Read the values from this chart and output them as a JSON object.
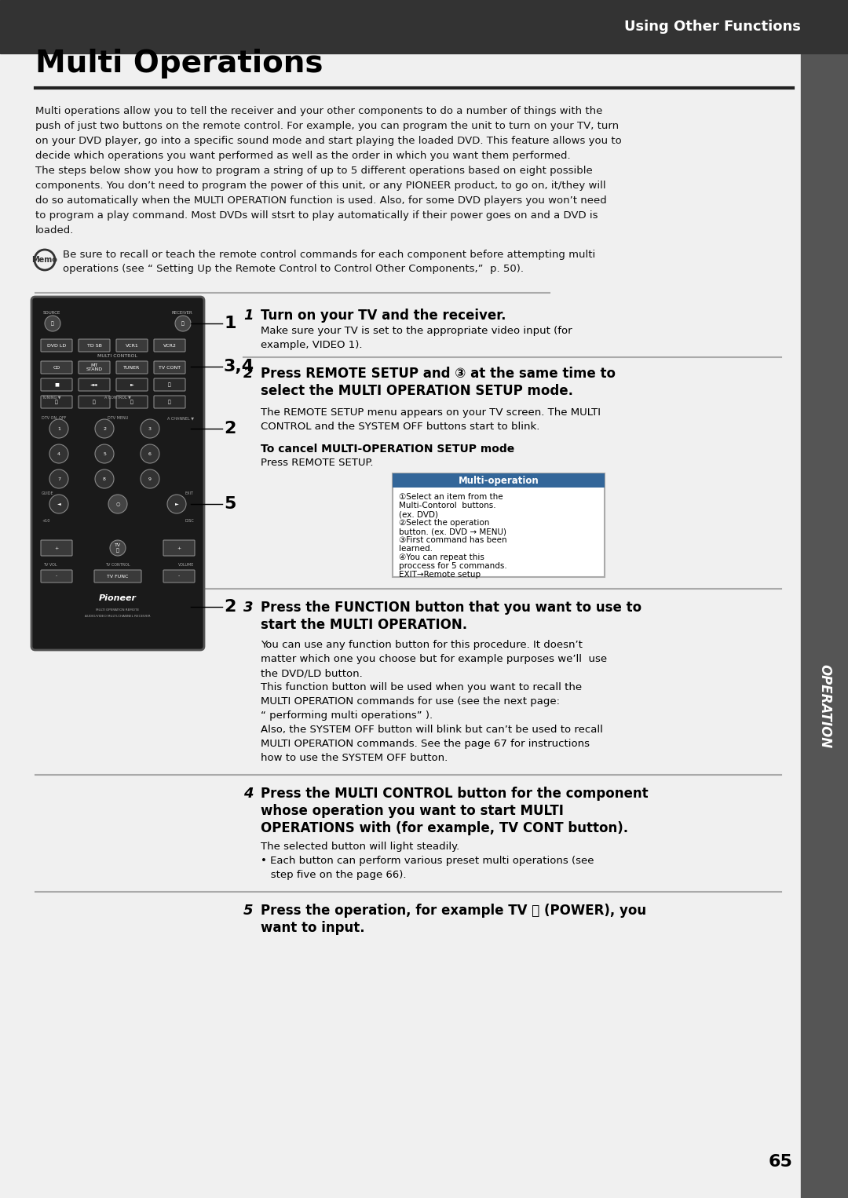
{
  "bg_color": "#e8e8e8",
  "page_bg": "#f0f0f0",
  "header_bg": "#333333",
  "header_text": "Using Other Functions",
  "header_text_color": "#ffffff",
  "title": "Multi Operations",
  "title_color": "#000000",
  "sidebar_bg": "#555555",
  "sidebar_text": "OPERATION",
  "sidebar_text_color": "#ffffff",
  "page_number": "65",
  "body_text_color": "#111111",
  "intro_lines": [
    "Multi operations allow you to tell the receiver and your other components to do a number of things with the",
    "push of just two buttons on the remote control. For example, you can program the unit to turn on your TV, turn",
    "on your DVD player, go into a specific sound mode and start playing the loaded DVD. This feature allows you to",
    "decide which operations you want performed as well as the order in which you want them performed.",
    "The steps below show you how to program a string of up to 5 different operations based on eight possible",
    "components. You don’t need to program the power of this unit, or any PIONEER product, to go on, it/they will",
    "do so automatically when the MULTI OPERATION function is used. Also, for some DVD players you won’t need",
    "to program a play command. Most DVDs will stsrt to play automatically if their power goes on and a DVD is",
    "loaded."
  ],
  "memo_lines": [
    "Be sure to recall or teach the remote control commands for each component before attempting multi",
    "operations (see “ Setting Up the Remote Control to Control Other Components,”  p. 50)."
  ],
  "step1_num": "1",
  "step1_bold": "Turn on your TV and the receiver.",
  "step1_body_lines": [
    "Make sure your TV is set to the appropriate video input (for",
    "example, VIDEO 1)."
  ],
  "step2_num": "2",
  "step2_bold_lines": [
    "Press REMOTE SETUP and ③ at the same time to",
    "select the MULTI OPERATION SETUP mode."
  ],
  "step2_body_lines": [
    "The REMOTE SETUP menu appears on your TV screen. The MULTI",
    "CONTROL and the SYSTEM OFF buttons start to blink."
  ],
  "step2_cancel_bold": "To cancel MULTI-OPERATION SETUP mode",
  "step2_cancel_body": "Press REMOTE SETUP.",
  "multiop_title": "Multi-operation",
  "multiop_lines": [
    "①Select an item from the",
    "Multi-Contorol  buttons.",
    "(ex. DVD)",
    "②Select the operation",
    "button. (ex. DVD → MENU)",
    "③First command has been",
    "learned.",
    "④You can repeat this",
    "proccess for 5 commands.",
    "EXIT→Remote setup"
  ],
  "step3_num": "3",
  "step3_bold_lines": [
    "Press the FUNCTION button that you want to use to",
    "start the MULTI OPERATION."
  ],
  "step3_body_lines": [
    "You can use any function button for this procedure. It doesn’t",
    "matter which one you choose but for example purposes we’ll  use",
    "the DVD/LD button.",
    "This function button will be used when you want to recall the",
    "MULTI OPERATION commands for use (see the next page:",
    "“ performing multi operations” ).",
    "Also, the SYSTEM OFF button will blink but can’t be used to recall",
    "MULTI OPERATION commands. See the page 67 for instructions",
    "how to use the SYSTEM OFF button."
  ],
  "step4_num": "4",
  "step4_bold_lines": [
    "Press the MULTI CONTROL button for the component",
    "whose operation you want to start MULTI",
    "OPERATIONS with (for example, TV CONT button)."
  ],
  "step4_body_lines": [
    "The selected button will light steadily.",
    "• Each button can perform various preset multi operations (see",
    "   step five on the page 66)."
  ],
  "step5_num": "5",
  "step5_bold_lines": [
    "Press the operation, for example TV ⏻ (POWER), you",
    "want to input."
  ]
}
